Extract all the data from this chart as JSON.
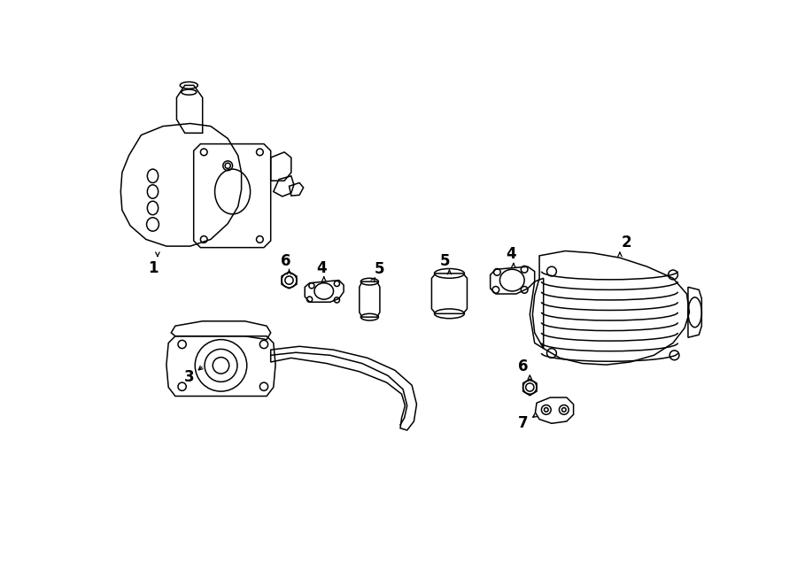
{
  "background_color": "#ffffff",
  "line_color": "#000000",
  "fig_width": 9.0,
  "fig_height": 6.62,
  "lw": 1.1
}
